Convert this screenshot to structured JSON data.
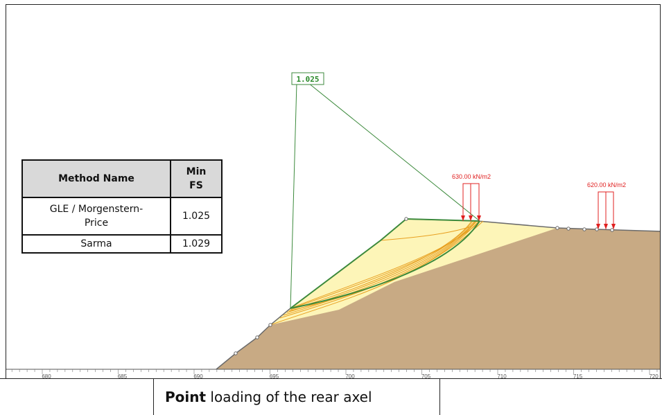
{
  "fs_label": "1.025",
  "loads": [
    {
      "label": "630.00 kN/m2"
    },
    {
      "label": "620.00 kN/m2"
    }
  ],
  "axis": {
    "ticks": [
      "680",
      "685",
      "690",
      "695",
      "700",
      "705",
      "710",
      "715",
      "720"
    ]
  },
  "table": {
    "headers": {
      "method": "Method Name",
      "min_fs": "Min\nFS"
    },
    "rows": [
      {
        "method": "GLE / Morgenstern-\nPrice",
        "fs": "1.025"
      },
      {
        "method": "Sarma",
        "fs": "1.029"
      }
    ]
  },
  "caption": {
    "bold": "Point",
    "rest": " loading of the rear axel"
  },
  "colors": {
    "soil": "#c8aa84",
    "zone": "#fdf5b8",
    "slip": "#e8a020",
    "critical": "#3c8a3c",
    "load": "#e02020"
  }
}
